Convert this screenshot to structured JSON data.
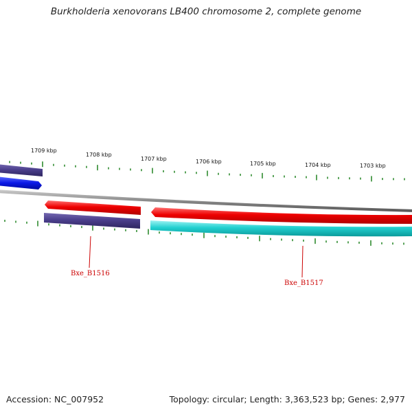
{
  "title": "Burkholderia xenovorans LB400 chromosome 2, complete genome",
  "ruler": {
    "labels": [
      "1709 kbp",
      "1708 kbp",
      "1707 kbp",
      "1706 kbp",
      "1705 kbp",
      "1704 kbp",
      "1703 kbp"
    ],
    "tick_color": "#2e8b2e"
  },
  "genes": [
    {
      "name": "Bxe_B1516",
      "color": "#4b3f8c"
    },
    {
      "name": "Bxe_B1517",
      "color": "#12c8c8"
    }
  ],
  "feature_colors": {
    "forward_blue": "#0a18e6",
    "reverse_red": "#ee0000",
    "backbone": "#8a8a8a"
  },
  "footer": {
    "accession": "Accession: NC_007952",
    "stats": "Topology: circular; Length: 3,363,523 bp; Genes: 2,977"
  }
}
